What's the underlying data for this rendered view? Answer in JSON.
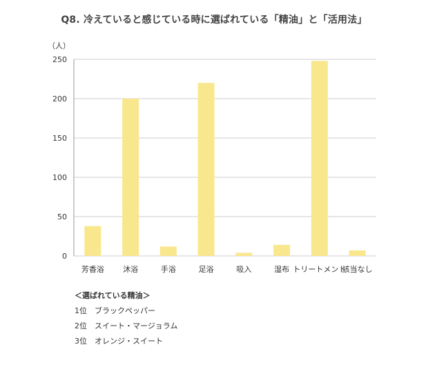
{
  "chart_data": {
    "type": "bar",
    "title": "Q8. 冷えていると感じている時に選ばれている「精油」と「活用法」",
    "ylabel": "（人）",
    "xlabel": "",
    "ylim": [
      0,
      250
    ],
    "yticks": [
      0,
      50,
      100,
      150,
      200,
      250
    ],
    "grid": true,
    "categories": [
      "芳香浴",
      "沐浴",
      "手浴",
      "足浴",
      "吸入",
      "湿布",
      "トリートメント",
      "該当なし"
    ],
    "values": [
      38,
      200,
      12,
      220,
      4,
      14,
      248,
      7
    ],
    "bar_color": "#f9e78e",
    "grid_color": "#cccccc"
  },
  "notes": {
    "heading": "＜選ばれている精油＞",
    "items": [
      "1位　ブラックペッパー",
      "2位　スイート・マージョラム",
      "3位　オレンジ・スイート"
    ]
  }
}
